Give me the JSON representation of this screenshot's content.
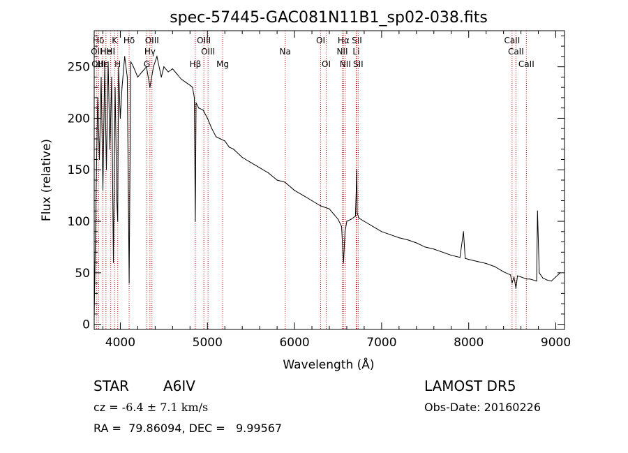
{
  "chart_data": {
    "type": "line",
    "title": "spec-57445-GAC081N11B1_sp02-038.fits",
    "xlabel": "Wavelength (Å)",
    "ylabel": "Flux (relative)",
    "xlim": [
      3700,
      9100
    ],
    "ylim": [
      -5,
      285
    ],
    "xticks": [
      4000,
      5000,
      6000,
      7000,
      8000,
      9000
    ],
    "yticks": [
      0,
      50,
      100,
      150,
      200,
      250
    ],
    "grid": false,
    "series": [
      {
        "color": "#000000",
        "x": [
          3700,
          3720,
          3740,
          3760,
          3780,
          3800,
          3820,
          3840,
          3860,
          3880,
          3900,
          3920,
          3940,
          3960,
          3970,
          3980,
          4000,
          4020,
          4050,
          4080,
          4101,
          4120,
          4150,
          4200,
          4250,
          4300,
          4340,
          4380,
          4420,
          4471,
          4500,
          4550,
          4600,
          4650,
          4700,
          4750,
          4800,
          4830,
          4850,
          4861,
          4870,
          4900,
          4950,
          5000,
          5050,
          5100,
          5150,
          5200,
          5250,
          5300,
          5400,
          5500,
          5600,
          5700,
          5800,
          5890,
          6000,
          6100,
          6200,
          6300,
          6400,
          6450,
          6500,
          6540,
          6563,
          6580,
          6600,
          6650,
          6700,
          6716,
          6720,
          6740,
          6800,
          6900,
          7000,
          7100,
          7200,
          7300,
          7400,
          7500,
          7600,
          7700,
          7800,
          7900,
          7940,
          7960,
          8000,
          8100,
          8200,
          8300,
          8400,
          8480,
          8498,
          8520,
          8542,
          8560,
          8600,
          8662,
          8700,
          8780,
          8790,
          8810,
          8850,
          8900,
          8950,
          9000,
          9050
        ],
        "y": [
          5,
          120,
          220,
          160,
          240,
          130,
          250,
          150,
          255,
          170,
          240,
          60,
          230,
          120,
          100,
          250,
          200,
          230,
          260,
          240,
          40,
          255,
          250,
          240,
          245,
          250,
          230,
          250,
          260,
          240,
          250,
          245,
          248,
          243,
          238,
          235,
          232,
          230,
          220,
          100,
          215,
          210,
          208,
          200,
          190,
          182,
          180,
          178,
          172,
          170,
          162,
          157,
          152,
          147,
          140,
          138,
          130,
          125,
          120,
          115,
          112,
          107,
          102,
          95,
          60,
          90,
          100,
          102,
          105,
          150,
          108,
          103,
          100,
          95,
          90,
          87,
          84,
          82,
          79,
          75,
          73,
          70,
          67,
          65,
          90,
          64,
          63,
          61,
          59,
          56,
          51,
          48,
          40,
          46,
          35,
          47,
          46,
          44,
          44,
          42,
          110,
          50,
          45,
          43,
          42,
          46,
          50
        ]
      }
    ],
    "lines": [
      {
        "name": "Hδ",
        "wave": 3750,
        "row": 1
      },
      {
        "name": "OII",
        "wave": 3727,
        "row": 2
      },
      {
        "name": "OIII",
        "wave": 3750,
        "row": 3
      },
      {
        "name": "Hε",
        "wave": 3800,
        "row": 3
      },
      {
        "name": "He",
        "wave": 3835,
        "row": 2
      },
      {
        "name": "K",
        "wave": 3934,
        "row": 1
      },
      {
        "name": "H",
        "wave": 3970,
        "row": 3
      },
      {
        "name": "HI",
        "wave": 3890,
        "row": 2
      },
      {
        "name": "Hδ",
        "wave": 4101,
        "row": 1
      },
      {
        "name": "OIII",
        "wave": 4363,
        "row": 1
      },
      {
        "name": "Hγ",
        "wave": 4340,
        "row": 2
      },
      {
        "name": "G",
        "wave": 4305,
        "row": 3
      },
      {
        "name": "Hβ",
        "wave": 4861,
        "row": 3
      },
      {
        "name": "OIII",
        "wave": 4959,
        "row": 1
      },
      {
        "name": "OIII",
        "wave": 5007,
        "row": 2
      },
      {
        "name": "Mg",
        "wave": 5175,
        "row": 3
      },
      {
        "name": "Na",
        "wave": 5893,
        "row": 2
      },
      {
        "name": "OI",
        "wave": 6300,
        "row": 1
      },
      {
        "name": "OI",
        "wave": 6364,
        "row": 3
      },
      {
        "name": "Hα",
        "wave": 6563,
        "row": 1
      },
      {
        "name": "NII",
        "wave": 6548,
        "row": 2
      },
      {
        "name": "NII",
        "wave": 6583,
        "row": 3
      },
      {
        "name": "SII",
        "wave": 6716,
        "row": 1
      },
      {
        "name": "Li",
        "wave": 6708,
        "row": 2
      },
      {
        "name": "SII",
        "wave": 6731,
        "row": 3
      },
      {
        "name": "CaII",
        "wave": 8498,
        "row": 1
      },
      {
        "name": "CaII",
        "wave": 8542,
        "row": 2
      },
      {
        "name": "CaII",
        "wave": 8662,
        "row": 3
      }
    ],
    "line_color": "#cc0000"
  },
  "info": {
    "class_label": "STAR",
    "subclass": "A6IV",
    "survey": "LAMOST DR5",
    "cz_label": "cz = ",
    "cz_value": "-6.4 ± 7.1 km/s",
    "obs_date": "Obs-Date: 20160226",
    "radec": "RA =  79.86094, DEC =   9.99567"
  }
}
